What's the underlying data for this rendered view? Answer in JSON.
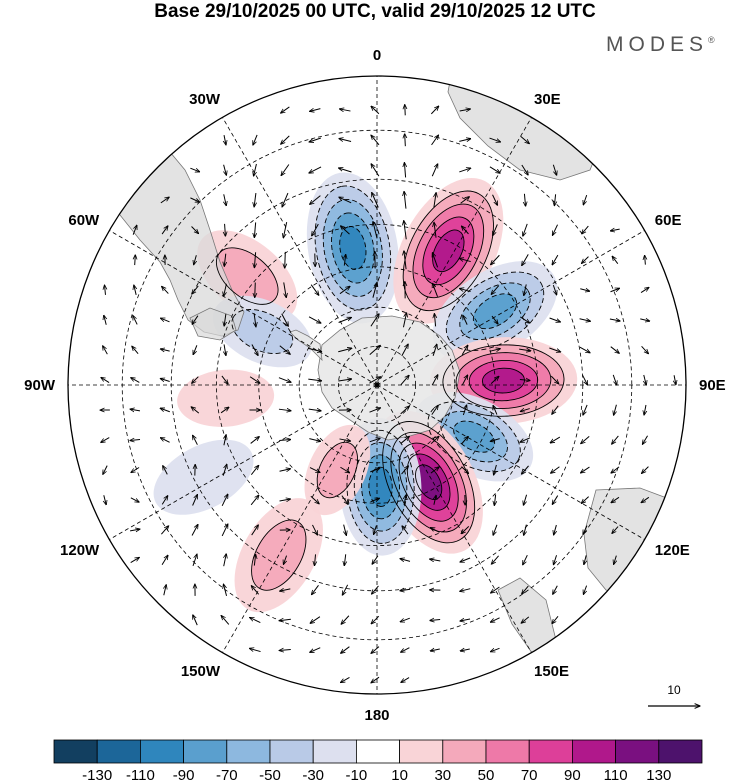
{
  "title": "Base 29/10/2025 00 UTC, valid 29/10/2025 12 UTC",
  "brand": "MODES",
  "brand_mark": "®",
  "chart_data": {
    "type": "polar-stereographic map (southern hemisphere) with filled contours and wind vectors",
    "longitude_labels": [
      {
        "name": "lon-0",
        "text": "0",
        "lon": 0
      },
      {
        "name": "lon-30e",
        "text": "30E",
        "lon": 30
      },
      {
        "name": "lon-60e",
        "text": "60E",
        "lon": 60
      },
      {
        "name": "lon-90e",
        "text": "90E",
        "lon": 90
      },
      {
        "name": "lon-120e",
        "text": "120E",
        "lon": 120
      },
      {
        "name": "lon-150e",
        "text": "150E",
        "lon": 150
      },
      {
        "name": "lon-180",
        "text": "180",
        "lon": 180
      },
      {
        "name": "lon-150w",
        "text": "150W",
        "lon": -150
      },
      {
        "name": "lon-120w",
        "text": "120W",
        "lon": -120
      },
      {
        "name": "lon-90w",
        "text": "90W",
        "lon": -90
      },
      {
        "name": "lon-60w",
        "text": "60W",
        "lon": -60
      },
      {
        "name": "lon-30w",
        "text": "30W",
        "lon": -30
      }
    ],
    "anomaly_centers": [
      {
        "name": "positive-center-1",
        "lon": -50,
        "lat": -48,
        "value": 50
      },
      {
        "name": "negative-center-1",
        "lon": -10,
        "lat": -55,
        "value": -110
      },
      {
        "name": "positive-center-2",
        "lon": 28,
        "lat": -52,
        "value": 110
      },
      {
        "name": "negative-center-2",
        "lon": 58,
        "lat": -55,
        "value": -90
      },
      {
        "name": "positive-center-3",
        "lon": 88,
        "lat": -58,
        "value": 110
      },
      {
        "name": "negative-center-3",
        "lon": 118,
        "lat": -62,
        "value": -90
      },
      {
        "name": "positive-center-4",
        "lon": 152,
        "lat": -62,
        "value": 130
      },
      {
        "name": "negative-center-4",
        "lon": 178,
        "lat": -64,
        "value": -110
      },
      {
        "name": "positive-center-5",
        "lon": -155,
        "lat": -66,
        "value": 50
      },
      {
        "name": "positive-center-6",
        "lon": -150,
        "lat": -42,
        "value": 50
      },
      {
        "name": "negative-center-5",
        "lon": -65,
        "lat": -58,
        "value": -50
      },
      {
        "name": "negative-center-6",
        "lon": -118,
        "lat": -42,
        "value": -30
      },
      {
        "name": "positive-center-7",
        "lon": -95,
        "lat": -52,
        "value": 30
      }
    ],
    "colorbar": {
      "ticks": [
        "-130",
        "-110",
        "-90",
        "-70",
        "-50",
        "-30",
        "-10",
        "10",
        "30",
        "50",
        "70",
        "90",
        "110",
        "130"
      ],
      "colors": [
        "#123f60",
        "#1c6699",
        "#2f86bd",
        "#5a9fce",
        "#8db8df",
        "#b9cae7",
        "#dde0ef",
        "#ffffff",
        "#f9d4d7",
        "#f4a9bb",
        "#ee79a8",
        "#dd3f99",
        "#b0188b",
        "#7a1080",
        "#4d126c"
      ]
    },
    "reference_vector": {
      "label": "10"
    }
  }
}
